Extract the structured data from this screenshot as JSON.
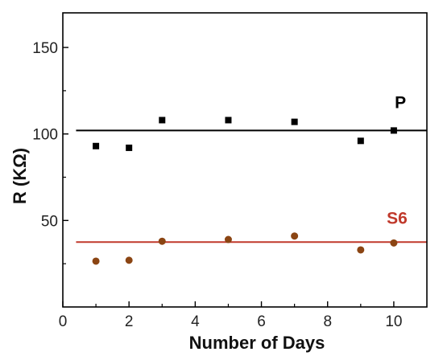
{
  "chart_data": {
    "type": "scatter",
    "title": "",
    "xlabel": "Number of Days",
    "ylabel": "R (KΩ)",
    "xlim": [
      0,
      11
    ],
    "ylim": [
      0,
      170
    ],
    "xticks": [
      0,
      2,
      4,
      6,
      8,
      10
    ],
    "yticks": [
      50,
      100,
      150
    ],
    "grid": false,
    "series": [
      {
        "name": "P",
        "color": "#000000",
        "marker": "square",
        "line_color": "#000000",
        "fit_line": [
          [
            0.4,
            102
          ],
          [
            11,
            102
          ]
        ],
        "points": [
          {
            "x": 1,
            "y": 93
          },
          {
            "x": 2,
            "y": 92
          },
          {
            "x": 3,
            "y": 108
          },
          {
            "x": 5,
            "y": 108
          },
          {
            "x": 7,
            "y": 107
          },
          {
            "x": 9,
            "y": 96
          },
          {
            "x": 10,
            "y": 102
          }
        ]
      },
      {
        "name": "S6",
        "color": "#8b4513",
        "marker": "circle",
        "line_color": "#c0392b",
        "label_color": "#c0392b",
        "fit_line": [
          [
            0.4,
            37.5
          ],
          [
            11,
            37.5
          ]
        ],
        "points": [
          {
            "x": 1,
            "y": 26.5
          },
          {
            "x": 2,
            "y": 27
          },
          {
            "x": 3,
            "y": 38
          },
          {
            "x": 5,
            "y": 39
          },
          {
            "x": 7,
            "y": 41
          },
          {
            "x": 9,
            "y": 33
          },
          {
            "x": 10,
            "y": 37
          }
        ]
      }
    ]
  }
}
